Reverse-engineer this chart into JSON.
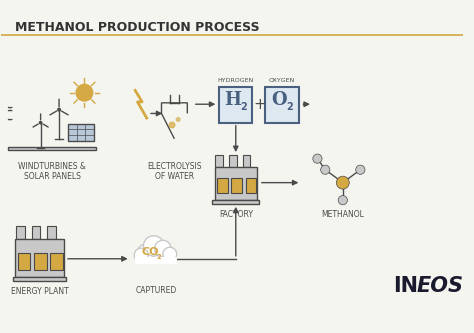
{
  "title": "METHANOL PRODUCTION PROCESS",
  "bg_color": "#f5f5f0",
  "title_color": "#333333",
  "gold_color": "#d4a843",
  "dark_color": "#4a4a4a",
  "light_gray": "#c8c8c8",
  "box_color": "#dde8f0",
  "box_border": "#4a6080",
  "labels": {
    "wind": "WINDTURBINES &\nSOLAR PANELS",
    "electrolysis": "ELECTROLYSIS\nOF WATER",
    "hydrogen": "HYDROGEN",
    "oxygen": "OXYGEN",
    "factory": "FACTORY",
    "methanol": "METHANOL",
    "energy": "ENERGY PLANT",
    "captured": "CAPTURED"
  },
  "label_fontsize": 5.5,
  "title_fontsize": 9
}
